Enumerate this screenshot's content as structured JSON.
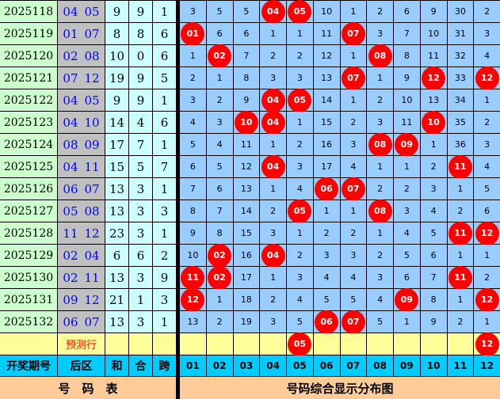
{
  "colors": {
    "hit": "#ff0000",
    "period_bg": "#ccffcc",
    "back_bg": "#c0c0c0",
    "dist_bg": "#99ccff",
    "header_bg": "#00ccff",
    "footer_bg": "#ffcc99",
    "pred_bg": "#ffff99"
  },
  "rows": [
    {
      "period": "2025118",
      "back": [
        "04",
        "05"
      ],
      "sum": "9",
      "he": "9",
      "kua": "1",
      "cells": [
        "3",
        "5",
        "5",
        "04",
        "05",
        "10",
        "1",
        "2",
        "6",
        "9",
        "30",
        "2"
      ]
    },
    {
      "period": "2025119",
      "back": [
        "01",
        "07"
      ],
      "sum": "8",
      "he": "8",
      "kua": "6",
      "cells": [
        "01",
        "6",
        "6",
        "1",
        "1",
        "11",
        "07",
        "3",
        "7",
        "10",
        "31",
        "3"
      ]
    },
    {
      "period": "2025120",
      "back": [
        "02",
        "08"
      ],
      "sum": "10",
      "he": "0",
      "kua": "6",
      "cells": [
        "1",
        "02",
        "7",
        "2",
        "2",
        "12",
        "1",
        "08",
        "8",
        "11",
        "32",
        "4"
      ]
    },
    {
      "period": "2025121",
      "back": [
        "07",
        "12"
      ],
      "sum": "19",
      "he": "9",
      "kua": "5",
      "cells": [
        "2",
        "1",
        "8",
        "3",
        "3",
        "13",
        "07",
        "1",
        "9",
        "12",
        "33",
        "12"
      ]
    },
    {
      "period": "2025122",
      "back": [
        "04",
        "05"
      ],
      "sum": "9",
      "he": "9",
      "kua": "1",
      "cells": [
        "3",
        "2",
        "9",
        "04",
        "05",
        "14",
        "1",
        "2",
        "10",
        "13",
        "34",
        "1"
      ]
    },
    {
      "period": "2025123",
      "back": [
        "04",
        "10"
      ],
      "sum": "14",
      "he": "4",
      "kua": "6",
      "cells": [
        "4",
        "3",
        "10",
        "04",
        "1",
        "15",
        "2",
        "3",
        "11",
        "10",
        "35",
        "2"
      ]
    },
    {
      "period": "2025124",
      "back": [
        "08",
        "09"
      ],
      "sum": "17",
      "he": "7",
      "kua": "1",
      "cells": [
        "5",
        "4",
        "11",
        "1",
        "2",
        "16",
        "3",
        "08",
        "09",
        "1",
        "36",
        "3"
      ]
    },
    {
      "period": "2025125",
      "back": [
        "04",
        "11"
      ],
      "sum": "15",
      "he": "5",
      "kua": "7",
      "cells": [
        "6",
        "5",
        "12",
        "04",
        "3",
        "17",
        "4",
        "1",
        "1",
        "2",
        "11",
        "4"
      ]
    },
    {
      "period": "2025126",
      "back": [
        "06",
        "07"
      ],
      "sum": "13",
      "he": "3",
      "kua": "1",
      "cells": [
        "7",
        "6",
        "13",
        "1",
        "4",
        "06",
        "07",
        "2",
        "2",
        "3",
        "1",
        "5"
      ]
    },
    {
      "period": "2025127",
      "back": [
        "05",
        "08"
      ],
      "sum": "13",
      "he": "3",
      "kua": "3",
      "cells": [
        "8",
        "7",
        "14",
        "2",
        "05",
        "1",
        "1",
        "08",
        "3",
        "4",
        "2",
        "6"
      ]
    },
    {
      "period": "2025128",
      "back": [
        "11",
        "12"
      ],
      "sum": "23",
      "he": "3",
      "kua": "1",
      "cells": [
        "9",
        "8",
        "15",
        "3",
        "1",
        "2",
        "2",
        "1",
        "4",
        "5",
        "11",
        "12"
      ]
    },
    {
      "period": "2025129",
      "back": [
        "02",
        "04"
      ],
      "sum": "6",
      "he": "6",
      "kua": "2",
      "cells": [
        "10",
        "02",
        "16",
        "04",
        "2",
        "3",
        "3",
        "2",
        "5",
        "6",
        "1",
        "1"
      ]
    },
    {
      "period": "2025130",
      "back": [
        "02",
        "11"
      ],
      "sum": "13",
      "he": "3",
      "kua": "9",
      "cells": [
        "11",
        "02",
        "17",
        "1",
        "3",
        "4",
        "4",
        "3",
        "6",
        "7",
        "11",
        "2"
      ]
    },
    {
      "period": "2025131",
      "back": [
        "09",
        "12"
      ],
      "sum": "21",
      "he": "1",
      "kua": "3",
      "cells": [
        "12",
        "1",
        "18",
        "2",
        "4",
        "5",
        "5",
        "4",
        "09",
        "8",
        "1",
        "12"
      ]
    },
    {
      "period": "2025132",
      "back": [
        "06",
        "07"
      ],
      "sum": "13",
      "he": "3",
      "kua": "1",
      "cells": [
        "13",
        "2",
        "19",
        "3",
        "5",
        "06",
        "07",
        "5",
        "1",
        "9",
        "2",
        "1"
      ]
    }
  ],
  "prediction": {
    "label": "预测行",
    "cells": [
      "",
      "",
      "",
      "",
      "05",
      "",
      "",
      "",
      "",
      "",
      "",
      "12"
    ]
  },
  "header": {
    "period": "开奖期号",
    "back": "后区",
    "sum": "和",
    "he": "合",
    "kua": "跨",
    "numbers": [
      "01",
      "02",
      "03",
      "04",
      "05",
      "06",
      "07",
      "08",
      "09",
      "10",
      "11",
      "12"
    ]
  },
  "footer": {
    "left": "号　码　表",
    "right": "号码综合显示分布图"
  }
}
